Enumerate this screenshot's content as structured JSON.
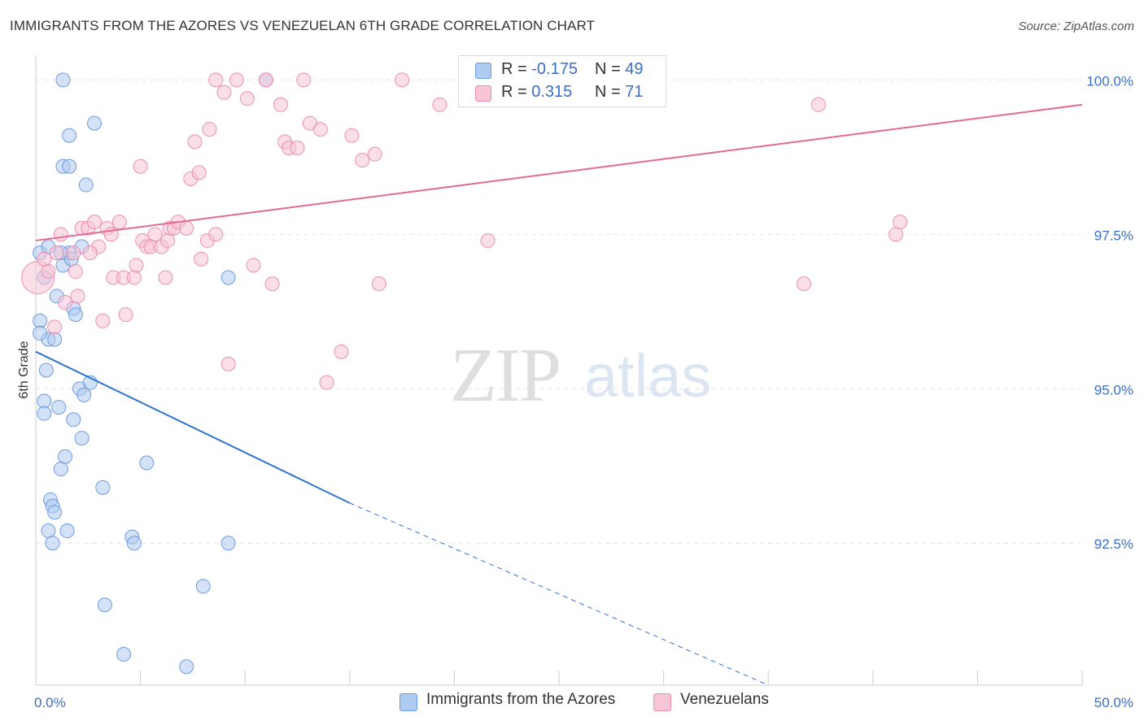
{
  "title": "IMMIGRANTS FROM THE AZORES VS VENEZUELAN 6TH GRADE CORRELATION CHART",
  "source": "Source: ZipAtlas.com",
  "watermark": {
    "zip": "ZIP",
    "atlas": "atlas"
  },
  "legend": {
    "series1": {
      "r_label": "R = ",
      "r_value": "-0.175",
      "n_label": "N = ",
      "n_value": "49"
    },
    "series2": {
      "r_label": "R = ",
      "r_value": " 0.315",
      "n_label": "N = ",
      "n_value": "71"
    }
  },
  "colors": {
    "blue_fill": "#aecbf1",
    "blue_stroke": "#6f9be0",
    "blue_line": "#2f74d0",
    "pink_fill": "#f8c5d6",
    "pink_stroke": "#ec8fae",
    "pink_line": "#e36a94",
    "axis_label": "#3a6fc4",
    "grid": "#e2e2e2"
  },
  "chart_data": {
    "type": "scatter",
    "title": "IMMIGRANTS FROM THE AZORES VS VENEZUELAN 6TH GRADE CORRELATION CHART",
    "xlabel": "",
    "ylabel": "6th Grade",
    "xlim": [
      0,
      50
    ],
    "ylim": [
      90.2,
      100.4
    ],
    "x_tick_labels": [
      {
        "value": 0,
        "label": "0.0%"
      },
      {
        "value": 50,
        "label": "50.0%"
      }
    ],
    "x_minor_ticks": [
      5,
      10,
      15,
      20,
      25,
      30,
      35,
      40,
      45,
      50
    ],
    "y_ticks": [
      {
        "value": 100,
        "label": "100.0%"
      },
      {
        "value": 97.5,
        "label": "97.5%"
      },
      {
        "value": 95,
        "label": "95.0%"
      },
      {
        "value": 92.5,
        "label": "92.5%"
      }
    ],
    "legend_position": "bottom",
    "series": [
      {
        "name": "Immigrants from the Azores",
        "color": "blue",
        "r": -0.175,
        "n": 49,
        "trend": {
          "x0": 0,
          "y0": 95.6,
          "x1": 15,
          "y1": 93.15,
          "dash_to_x": 35,
          "dash_to_y": 90.2
        },
        "points": [
          [
            0.2,
            97.2
          ],
          [
            0.4,
            96.8
          ],
          [
            0.6,
            97.3
          ],
          [
            1.0,
            96.5
          ],
          [
            1.3,
            97.0
          ],
          [
            1.6,
            97.2
          ],
          [
            1.8,
            96.3
          ],
          [
            0.2,
            96.1
          ],
          [
            0.6,
            95.8
          ],
          [
            0.2,
            95.9
          ],
          [
            0.9,
            95.8
          ],
          [
            0.5,
            95.3
          ],
          [
            1.9,
            96.2
          ],
          [
            2.2,
            97.3
          ],
          [
            1.3,
            98.6
          ],
          [
            1.6,
            98.6
          ],
          [
            1.6,
            99.1
          ],
          [
            2.8,
            99.3
          ],
          [
            2.4,
            98.3
          ],
          [
            1.3,
            100.0
          ],
          [
            0.4,
            94.8
          ],
          [
            0.4,
            94.6
          ],
          [
            1.1,
            94.7
          ],
          [
            1.8,
            94.5
          ],
          [
            2.1,
            95.0
          ],
          [
            2.3,
            94.9
          ],
          [
            2.6,
            95.1
          ],
          [
            2.2,
            94.2
          ],
          [
            1.4,
            93.9
          ],
          [
            1.2,
            93.7
          ],
          [
            0.7,
            93.2
          ],
          [
            0.8,
            93.1
          ],
          [
            0.9,
            93.0
          ],
          [
            0.6,
            92.7
          ],
          [
            0.8,
            92.5
          ],
          [
            1.5,
            92.7
          ],
          [
            3.2,
            93.4
          ],
          [
            5.3,
            93.8
          ],
          [
            4.6,
            92.6
          ],
          [
            4.7,
            92.5
          ],
          [
            9.2,
            92.5
          ],
          [
            8.0,
            91.8
          ],
          [
            3.3,
            91.5
          ],
          [
            4.2,
            90.7
          ],
          [
            7.2,
            90.5
          ],
          [
            9.2,
            96.8
          ],
          [
            11.0,
            100.0
          ],
          [
            1.7,
            97.1
          ],
          [
            1.2,
            97.2
          ]
        ]
      },
      {
        "name": "Venezuelans",
        "color": "pink",
        "r": 0.315,
        "n": 71,
        "trend": {
          "x0": 0,
          "y0": 97.4,
          "x1": 50,
          "y1": 99.6
        },
        "points": [
          [
            0.1,
            96.8
          ],
          [
            0.4,
            97.1
          ],
          [
            0.6,
            96.9
          ],
          [
            1.0,
            97.2
          ],
          [
            1.2,
            97.5
          ],
          [
            1.8,
            97.2
          ],
          [
            1.9,
            96.9
          ],
          [
            2.0,
            96.5
          ],
          [
            2.2,
            97.6
          ],
          [
            2.5,
            97.6
          ],
          [
            2.8,
            97.7
          ],
          [
            3.0,
            97.3
          ],
          [
            3.2,
            96.1
          ],
          [
            3.4,
            97.6
          ],
          [
            3.6,
            97.5
          ],
          [
            3.7,
            96.8
          ],
          [
            4.0,
            97.7
          ],
          [
            4.2,
            96.8
          ],
          [
            4.3,
            96.2
          ],
          [
            4.7,
            96.8
          ],
          [
            4.8,
            97.0
          ],
          [
            5.0,
            98.6
          ],
          [
            5.1,
            97.4
          ],
          [
            5.3,
            97.3
          ],
          [
            5.5,
            97.3
          ],
          [
            5.7,
            97.5
          ],
          [
            6.0,
            97.3
          ],
          [
            6.2,
            96.8
          ],
          [
            6.4,
            97.6
          ],
          [
            6.6,
            97.6
          ],
          [
            6.8,
            97.7
          ],
          [
            7.2,
            97.6
          ],
          [
            7.4,
            98.4
          ],
          [
            7.6,
            99.0
          ],
          [
            7.8,
            98.5
          ],
          [
            7.9,
            97.1
          ],
          [
            8.2,
            97.4
          ],
          [
            8.3,
            99.2
          ],
          [
            8.6,
            97.5
          ],
          [
            8.6,
            100.0
          ],
          [
            9.0,
            99.8
          ],
          [
            9.2,
            95.4
          ],
          [
            9.6,
            100.0
          ],
          [
            10.1,
            99.7
          ],
          [
            10.4,
            97.0
          ],
          [
            11.0,
            100.0
          ],
          [
            11.3,
            96.7
          ],
          [
            11.7,
            99.6
          ],
          [
            11.9,
            99.0
          ],
          [
            12.1,
            98.9
          ],
          [
            12.5,
            98.9
          ],
          [
            12.8,
            100.0
          ],
          [
            13.1,
            99.3
          ],
          [
            13.6,
            99.2
          ],
          [
            13.9,
            95.1
          ],
          [
            14.6,
            95.6
          ],
          [
            15.1,
            99.1
          ],
          [
            15.6,
            98.7
          ],
          [
            16.2,
            98.8
          ],
          [
            16.4,
            96.7
          ],
          [
            17.5,
            100.0
          ],
          [
            19.3,
            99.6
          ],
          [
            21.6,
            97.4
          ],
          [
            36.7,
            96.7
          ],
          [
            37.4,
            99.6
          ],
          [
            41.1,
            97.5
          ],
          [
            41.3,
            97.7
          ],
          [
            0.9,
            96.0
          ],
          [
            1.4,
            96.4
          ],
          [
            2.6,
            97.2
          ],
          [
            6.3,
            97.4
          ]
        ]
      }
    ]
  },
  "bottom_legend": {
    "series1_label": "Immigrants from the Azores",
    "series2_label": "Venezuelans"
  }
}
